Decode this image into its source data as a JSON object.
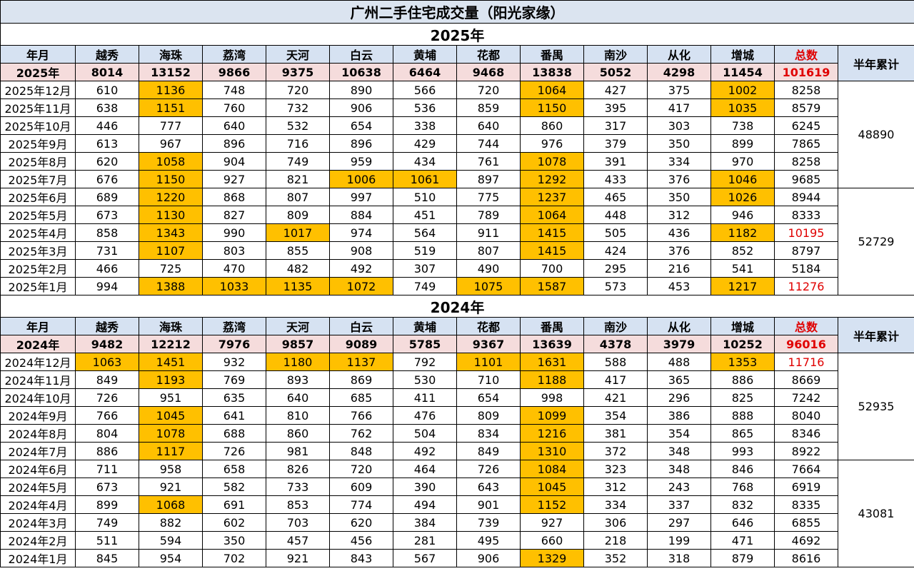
{
  "title": "广州二手住宅成交量（阳光家缘）",
  "highlight_color": "#ffc000",
  "total_color": "#e00000",
  "header_bg": "#d6e2f2",
  "total_row_bg": "#f5dcdc",
  "headers": [
    "年月",
    "越秀",
    "海珠",
    "荔湾",
    "天河",
    "白云",
    "黄埔",
    "花都",
    "番禺",
    "南沙",
    "从化",
    "增城",
    "总数"
  ],
  "half_label": "半年累计",
  "sections": [
    {
      "title": "2025年",
      "totals": [
        "2025年",
        "8014",
        "13152",
        "9866",
        "9375",
        "10638",
        "6464",
        "9468",
        "13838",
        "5052",
        "4298",
        "11454",
        "101619"
      ],
      "halves": [
        {
          "sum": "48890",
          "rows": [
            {
              "c": [
                "2025年12月",
                "610",
                "1136",
                "748",
                "720",
                "890",
                "566",
                "720",
                "1064",
                "427",
                "375",
                "1002",
                "8258"
              ],
              "hl": [
                2,
                8,
                11
              ],
              "red": false
            },
            {
              "c": [
                "2025年11月",
                "638",
                "1151",
                "760",
                "732",
                "906",
                "536",
                "859",
                "1150",
                "395",
                "417",
                "1035",
                "8579"
              ],
              "hl": [
                2,
                8,
                11
              ],
              "red": false
            },
            {
              "c": [
                "2025年10月",
                "446",
                "777",
                "640",
                "532",
                "654",
                "338",
                "640",
                "860",
                "317",
                "303",
                "738",
                "6245"
              ],
              "hl": [],
              "red": false
            },
            {
              "c": [
                "2025年9月",
                "613",
                "967",
                "896",
                "716",
                "896",
                "429",
                "744",
                "976",
                "379",
                "350",
                "899",
                "7865"
              ],
              "hl": [],
              "red": false
            },
            {
              "c": [
                "2025年8月",
                "620",
                "1058",
                "904",
                "749",
                "959",
                "434",
                "761",
                "1078",
                "391",
                "334",
                "970",
                "8258"
              ],
              "hl": [
                2,
                8
              ],
              "red": false
            },
            {
              "c": [
                "2025年7月",
                "676",
                "1150",
                "927",
                "821",
                "1006",
                "1061",
                "897",
                "1292",
                "433",
                "376",
                "1046",
                "9685"
              ],
              "hl": [
                2,
                5,
                6,
                8,
                11
              ],
              "red": false
            }
          ]
        },
        {
          "sum": "52729",
          "rows": [
            {
              "c": [
                "2025年6月",
                "689",
                "1220",
                "868",
                "807",
                "997",
                "510",
                "775",
                "1237",
                "465",
                "350",
                "1026",
                "8944"
              ],
              "hl": [
                2,
                8,
                11
              ],
              "red": false
            },
            {
              "c": [
                "2025年5月",
                "673",
                "1130",
                "827",
                "809",
                "884",
                "451",
                "789",
                "1064",
                "448",
                "312",
                "946",
                "8333"
              ],
              "hl": [
                2,
                8
              ],
              "red": false
            },
            {
              "c": [
                "2025年4月",
                "858",
                "1343",
                "990",
                "1017",
                "974",
                "564",
                "911",
                "1415",
                "505",
                "436",
                "1182",
                "10195"
              ],
              "hl": [
                2,
                4,
                8,
                11
              ],
              "red": true
            },
            {
              "c": [
                "2025年3月",
                "731",
                "1107",
                "803",
                "855",
                "908",
                "519",
                "807",
                "1415",
                "424",
                "376",
                "852",
                "8797"
              ],
              "hl": [
                2,
                8
              ],
              "red": false
            },
            {
              "c": [
                "2025年2月",
                "466",
                "725",
                "470",
                "482",
                "492",
                "307",
                "490",
                "700",
                "295",
                "216",
                "541",
                "5184"
              ],
              "hl": [],
              "red": false
            },
            {
              "c": [
                "2025年1月",
                "994",
                "1388",
                "1033",
                "1135",
                "1072",
                "749",
                "1075",
                "1587",
                "573",
                "453",
                "1217",
                "11276"
              ],
              "hl": [
                2,
                3,
                4,
                5,
                7,
                8,
                11
              ],
              "red": true
            }
          ]
        }
      ]
    },
    {
      "title": "2024年",
      "totals": [
        "2024年",
        "9482",
        "12212",
        "7976",
        "9857",
        "9089",
        "5785",
        "9367",
        "13639",
        "4378",
        "3979",
        "10252",
        "96016"
      ],
      "halves": [
        {
          "sum": "52935",
          "rows": [
            {
              "c": [
                "2024年12月",
                "1063",
                "1451",
                "932",
                "1180",
                "1137",
                "792",
                "1101",
                "1631",
                "588",
                "488",
                "1353",
                "11716"
              ],
              "hl": [
                1,
                2,
                4,
                5,
                7,
                8,
                11
              ],
              "red": true
            },
            {
              "c": [
                "2024年11月",
                "849",
                "1193",
                "769",
                "893",
                "869",
                "530",
                "710",
                "1188",
                "417",
                "365",
                "886",
                "8669"
              ],
              "hl": [
                2,
                8
              ],
              "red": false
            },
            {
              "c": [
                "2024年10月",
                "726",
                "951",
                "635",
                "640",
                "685",
                "411",
                "654",
                "998",
                "421",
                "296",
                "825",
                "7242"
              ],
              "hl": [],
              "red": false
            },
            {
              "c": [
                "2024年9月",
                "766",
                "1045",
                "641",
                "810",
                "766",
                "476",
                "809",
                "1099",
                "354",
                "386",
                "888",
                "8040"
              ],
              "hl": [
                2,
                8
              ],
              "red": false
            },
            {
              "c": [
                "2024年8月",
                "804",
                "1078",
                "688",
                "860",
                "762",
                "504",
                "834",
                "1216",
                "381",
                "354",
                "865",
                "8346"
              ],
              "hl": [
                2,
                8
              ],
              "red": false
            },
            {
              "c": [
                "2024年7月",
                "886",
                "1117",
                "726",
                "981",
                "848",
                "492",
                "849",
                "1310",
                "372",
                "348",
                "993",
                "8922"
              ],
              "hl": [
                2,
                8
              ],
              "red": false
            }
          ]
        },
        {
          "sum": "43081",
          "rows": [
            {
              "c": [
                "2024年6月",
                "711",
                "958",
                "658",
                "826",
                "720",
                "464",
                "726",
                "1084",
                "323",
                "348",
                "846",
                "7664"
              ],
              "hl": [
                8
              ],
              "red": false
            },
            {
              "c": [
                "2024年5月",
                "673",
                "921",
                "582",
                "733",
                "609",
                "390",
                "643",
                "1045",
                "312",
                "243",
                "768",
                "6919"
              ],
              "hl": [
                8
              ],
              "red": false
            },
            {
              "c": [
                "2024年4月",
                "899",
                "1068",
                "691",
                "853",
                "774",
                "494",
                "901",
                "1152",
                "334",
                "337",
                "832",
                "8335"
              ],
              "hl": [
                2,
                8
              ],
              "red": false
            },
            {
              "c": [
                "2024年3月",
                "749",
                "882",
                "602",
                "703",
                "620",
                "384",
                "739",
                "927",
                "306",
                "297",
                "646",
                "6855"
              ],
              "hl": [],
              "red": false
            },
            {
              "c": [
                "2024年2月",
                "511",
                "594",
                "350",
                "457",
                "456",
                "281",
                "495",
                "660",
                "218",
                "199",
                "471",
                "4692"
              ],
              "hl": [],
              "red": false
            },
            {
              "c": [
                "2024年1月",
                "845",
                "954",
                "702",
                "921",
                "843",
                "567",
                "906",
                "1329",
                "352",
                "318",
                "879",
                "8616"
              ],
              "hl": [
                8
              ],
              "red": false
            }
          ]
        }
      ]
    }
  ]
}
